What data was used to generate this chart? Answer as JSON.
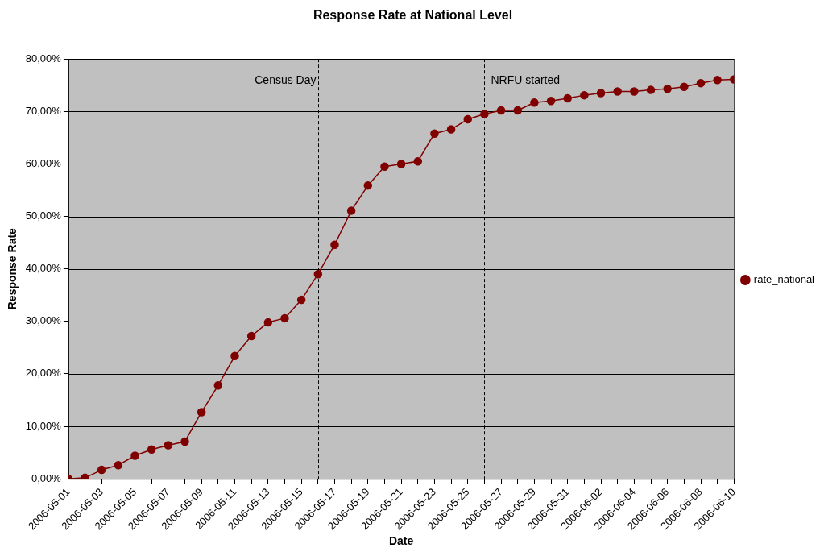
{
  "chart_data": {
    "type": "line",
    "title": "Response Rate at National Level",
    "xlabel": "Date",
    "ylabel": "Response Rate",
    "x": [
      "2006-05-01",
      "2006-05-02",
      "2006-05-03",
      "2006-05-04",
      "2006-05-05",
      "2006-05-06",
      "2006-05-07",
      "2006-05-08",
      "2006-05-09",
      "2006-05-10",
      "2006-05-11",
      "2006-05-12",
      "2006-05-13",
      "2006-05-14",
      "2006-05-15",
      "2006-05-16",
      "2006-05-17",
      "2006-05-18",
      "2006-05-19",
      "2006-05-20",
      "2006-05-21",
      "2006-05-22",
      "2006-05-23",
      "2006-05-24",
      "2006-05-25",
      "2006-05-26",
      "2006-05-27",
      "2006-05-28",
      "2006-05-29",
      "2006-05-30",
      "2006-05-31",
      "2006-06-01",
      "2006-06-02",
      "2006-06-03",
      "2006-06-04",
      "2006-06-05",
      "2006-06-06",
      "2006-06-07",
      "2006-06-08",
      "2006-06-09",
      "2006-06-10"
    ],
    "series": [
      {
        "name": "rate_national",
        "color": "#800000",
        "values": [
          0,
          0.2,
          1.7,
          2.6,
          4.4,
          5.6,
          6.4,
          7.1,
          12.7,
          17.8,
          23.4,
          27.2,
          29.8,
          30.6,
          34.1,
          39.0,
          44.6,
          51.1,
          55.9,
          59.5,
          60.0,
          60.5,
          65.8,
          66.6,
          68.5,
          69.5,
          70.2,
          70.2,
          71.7,
          72.0,
          72.5,
          73.1,
          73.5,
          73.8,
          73.8,
          74.1,
          74.3,
          74.7,
          75.4,
          76.0,
          76.1
        ]
      }
    ],
    "xlim": [
      "2006-05-01",
      "2006-06-10"
    ],
    "xticks": [
      "2006-05-01",
      {
        "value": "2006-05-02",
        "label": null
      },
      "2006-05-03",
      {
        "value": "2006-05-04",
        "label": null
      },
      "2006-05-05",
      {
        "value": "2006-05-06",
        "label": null
      },
      "2006-05-07",
      {
        "value": "2006-05-08",
        "label": null
      },
      "2006-05-09",
      {
        "value": "2006-05-10",
        "label": null
      },
      "2006-05-11",
      {
        "value": "2006-05-12",
        "label": null
      },
      "2006-05-13",
      {
        "value": "2006-05-14",
        "label": null
      },
      "2006-05-15",
      {
        "value": "2006-05-16",
        "label": null
      },
      "2006-05-17",
      {
        "value": "2006-05-18",
        "label": null
      },
      "2006-05-19",
      {
        "value": "2006-05-20",
        "label": null
      },
      "2006-05-21",
      {
        "value": "2006-05-22",
        "label": null
      },
      "2006-05-23",
      {
        "value": "2006-05-24",
        "label": null
      },
      "2006-05-25",
      {
        "value": "2006-05-26",
        "label": null
      },
      "2006-05-27",
      {
        "value": "2006-05-28",
        "label": null
      },
      "2006-05-29",
      {
        "value": "2006-05-30",
        "label": null
      },
      "2006-05-31",
      {
        "value": "2006-06-01",
        "label": null
      },
      "2006-06-02",
      {
        "value": "2006-06-03",
        "label": null
      },
      "2006-06-04",
      {
        "value": "2006-06-05",
        "label": null
      },
      "2006-06-06",
      {
        "value": "2006-06-07",
        "label": null
      },
      "2006-06-08",
      {
        "value": "2006-06-09",
        "label": null
      },
      "2006-06-10"
    ],
    "ylim": [
      0,
      80
    ],
    "yticks": [
      {
        "value": 0,
        "label": "0,00%"
      },
      {
        "value": 10,
        "label": "10,00%"
      },
      {
        "value": 20,
        "label": "20,00%"
      },
      {
        "value": 30,
        "label": "30,00%"
      },
      {
        "value": 40,
        "label": "40,00%"
      },
      {
        "value": 50,
        "label": "50,00%"
      },
      {
        "value": 60,
        "label": "60,00%"
      },
      {
        "value": 70,
        "label": "70,00%"
      },
      {
        "value": 80,
        "label": "80,00%"
      }
    ],
    "ref_lines": [
      {
        "axis": "x",
        "value": "2006-05-16",
        "label": "Census Day",
        "color": "#000000",
        "line_style": "dashed"
      },
      {
        "axis": "x",
        "value": "2006-05-26",
        "label": "NRFU started",
        "color": "#000000",
        "line_style": "dashed"
      }
    ],
    "grid": "y",
    "legend": "right",
    "marker": "circle",
    "line_style": "solid"
  }
}
